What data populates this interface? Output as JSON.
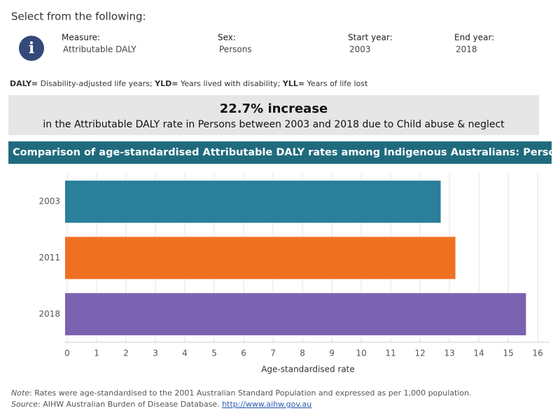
{
  "header": {
    "prompt": "Select from the following:",
    "filters": [
      {
        "label": "Measure:",
        "value": "Attributable DALY"
      },
      {
        "label": "Sex:",
        "value": "Persons"
      },
      {
        "label": "Start year:",
        "value": "2003"
      },
      {
        "label": "End year:",
        "value": "2018"
      }
    ]
  },
  "definitions": [
    {
      "term": "DALY=",
      "text": " Disability-adjusted life years; "
    },
    {
      "term": "YLD=",
      "text": " Years lived with disability; "
    },
    {
      "term": "YLL=",
      "text": " Years of life lost"
    }
  ],
  "summary": {
    "headline": "22.7% increase",
    "detail": "in the Attributable DALY rate in Persons between 2003 and 2018 due to Child abuse & neglect"
  },
  "chart_data": {
    "type": "hbar",
    "title": "Comparison of age-standardised Attributable DALY rates among Indigenous Australians: Persons",
    "categories": [
      "2003",
      "2011",
      "2018"
    ],
    "values": [
      12.7,
      13.2,
      15.6
    ],
    "colors": [
      "#2a7f9a",
      "#f07022",
      "#7a62b0"
    ],
    "xlim": [
      0,
      16.4
    ],
    "xticks": [
      0,
      1,
      2,
      3,
      4,
      5,
      6,
      7,
      8,
      9,
      10,
      11,
      12,
      13,
      14,
      15,
      16
    ],
    "xlabel": "Age-standardised rate",
    "grid": true
  },
  "footnotes": {
    "note_label": "Note",
    "note": ": Rates were age-standardised to the 2001 Australian Standard Population and expressed as per 1,000 population.",
    "source_label": "Source",
    "source": ": AIHW Australian Burden of Disease Database. ",
    "link": "http://www.aihw.gov.au"
  }
}
